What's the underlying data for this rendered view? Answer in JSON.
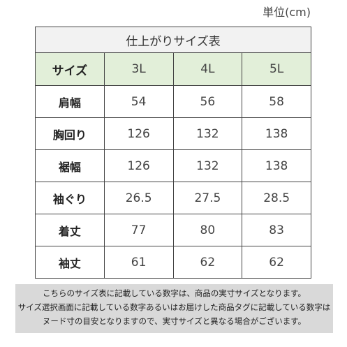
{
  "unit_label": "単位(cm)",
  "table": {
    "title": "仕上がりサイズ表",
    "header": {
      "label": "サイズ",
      "sizes": [
        "3L",
        "4L",
        "5L"
      ]
    },
    "rows": [
      {
        "label": "肩幅",
        "values": [
          "54",
          "56",
          "58"
        ]
      },
      {
        "label": "胸回り",
        "values": [
          "126",
          "132",
          "138"
        ]
      },
      {
        "label": "裾幅",
        "values": [
          "126",
          "132",
          "138"
        ]
      },
      {
        "label": "袖ぐり",
        "values": [
          "26.5",
          "27.5",
          "28.5"
        ]
      },
      {
        "label": "着丈",
        "values": [
          "77",
          "80",
          "83"
        ]
      },
      {
        "label": "袖丈",
        "values": [
          "61",
          "62",
          "62"
        ]
      }
    ]
  },
  "note": {
    "lines": [
      "こちらのサイズ表に記載している数字は、商品の実寸サイズとなります。",
      "サイズ選択画面に記載している数字あるいはお届けした商品タグに記載している数字は",
      "ヌード寸の目安となりますので、実寸サイズと異なる場合がございます。"
    ]
  },
  "colors": {
    "title_bg": "#f2f2f2",
    "header_bg": "#e2efd9",
    "note_bg": "#d9d9d9",
    "border": "#444444"
  }
}
